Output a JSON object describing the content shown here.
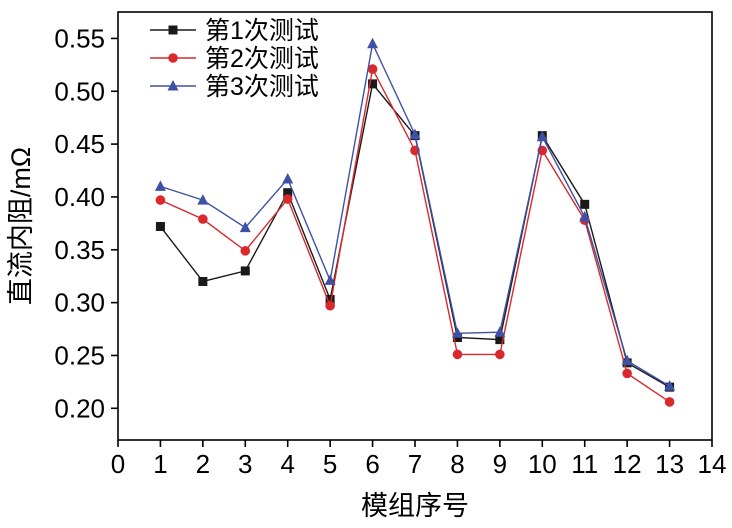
{
  "figure": {
    "background": "#ffffff",
    "frame_color": "#000000"
  },
  "chart_data": {
    "type": "line",
    "title": "",
    "xlabel": "模组序号",
    "ylabel": "直流内阻/mΩ",
    "xlim": [
      0,
      14
    ],
    "ylim": [
      0.17,
      0.575
    ],
    "xticks": [
      0,
      1,
      2,
      3,
      4,
      5,
      6,
      7,
      8,
      9,
      10,
      11,
      12,
      13,
      14
    ],
    "yticks": [
      0.2,
      0.25,
      0.3,
      0.35,
      0.4,
      0.45,
      0.5,
      0.55
    ],
    "grid": false,
    "legend_position": "top-left",
    "x": [
      1,
      2,
      3,
      4,
      5,
      6,
      7,
      8,
      9,
      10,
      11,
      12,
      13
    ],
    "series": [
      {
        "name": "第1次测试",
        "marker": "square",
        "color": "#1a1a1a",
        "values": [
          0.372,
          0.32,
          0.33,
          0.404,
          0.303,
          0.507,
          0.458,
          0.267,
          0.265,
          0.458,
          0.393,
          0.243,
          0.22
        ]
      },
      {
        "name": "第2次测试",
        "marker": "circle",
        "color": "#d9292d",
        "values": [
          0.397,
          0.379,
          0.349,
          0.398,
          0.297,
          0.521,
          0.444,
          0.251,
          0.251,
          0.444,
          0.378,
          0.233,
          0.206
        ]
      },
      {
        "name": "第3次测试",
        "marker": "triangle",
        "color": "#3f51a5",
        "values": [
          0.41,
          0.397,
          0.371,
          0.417,
          0.321,
          0.545,
          0.459,
          0.271,
          0.272,
          0.457,
          0.381,
          0.245,
          0.221
        ]
      }
    ]
  }
}
